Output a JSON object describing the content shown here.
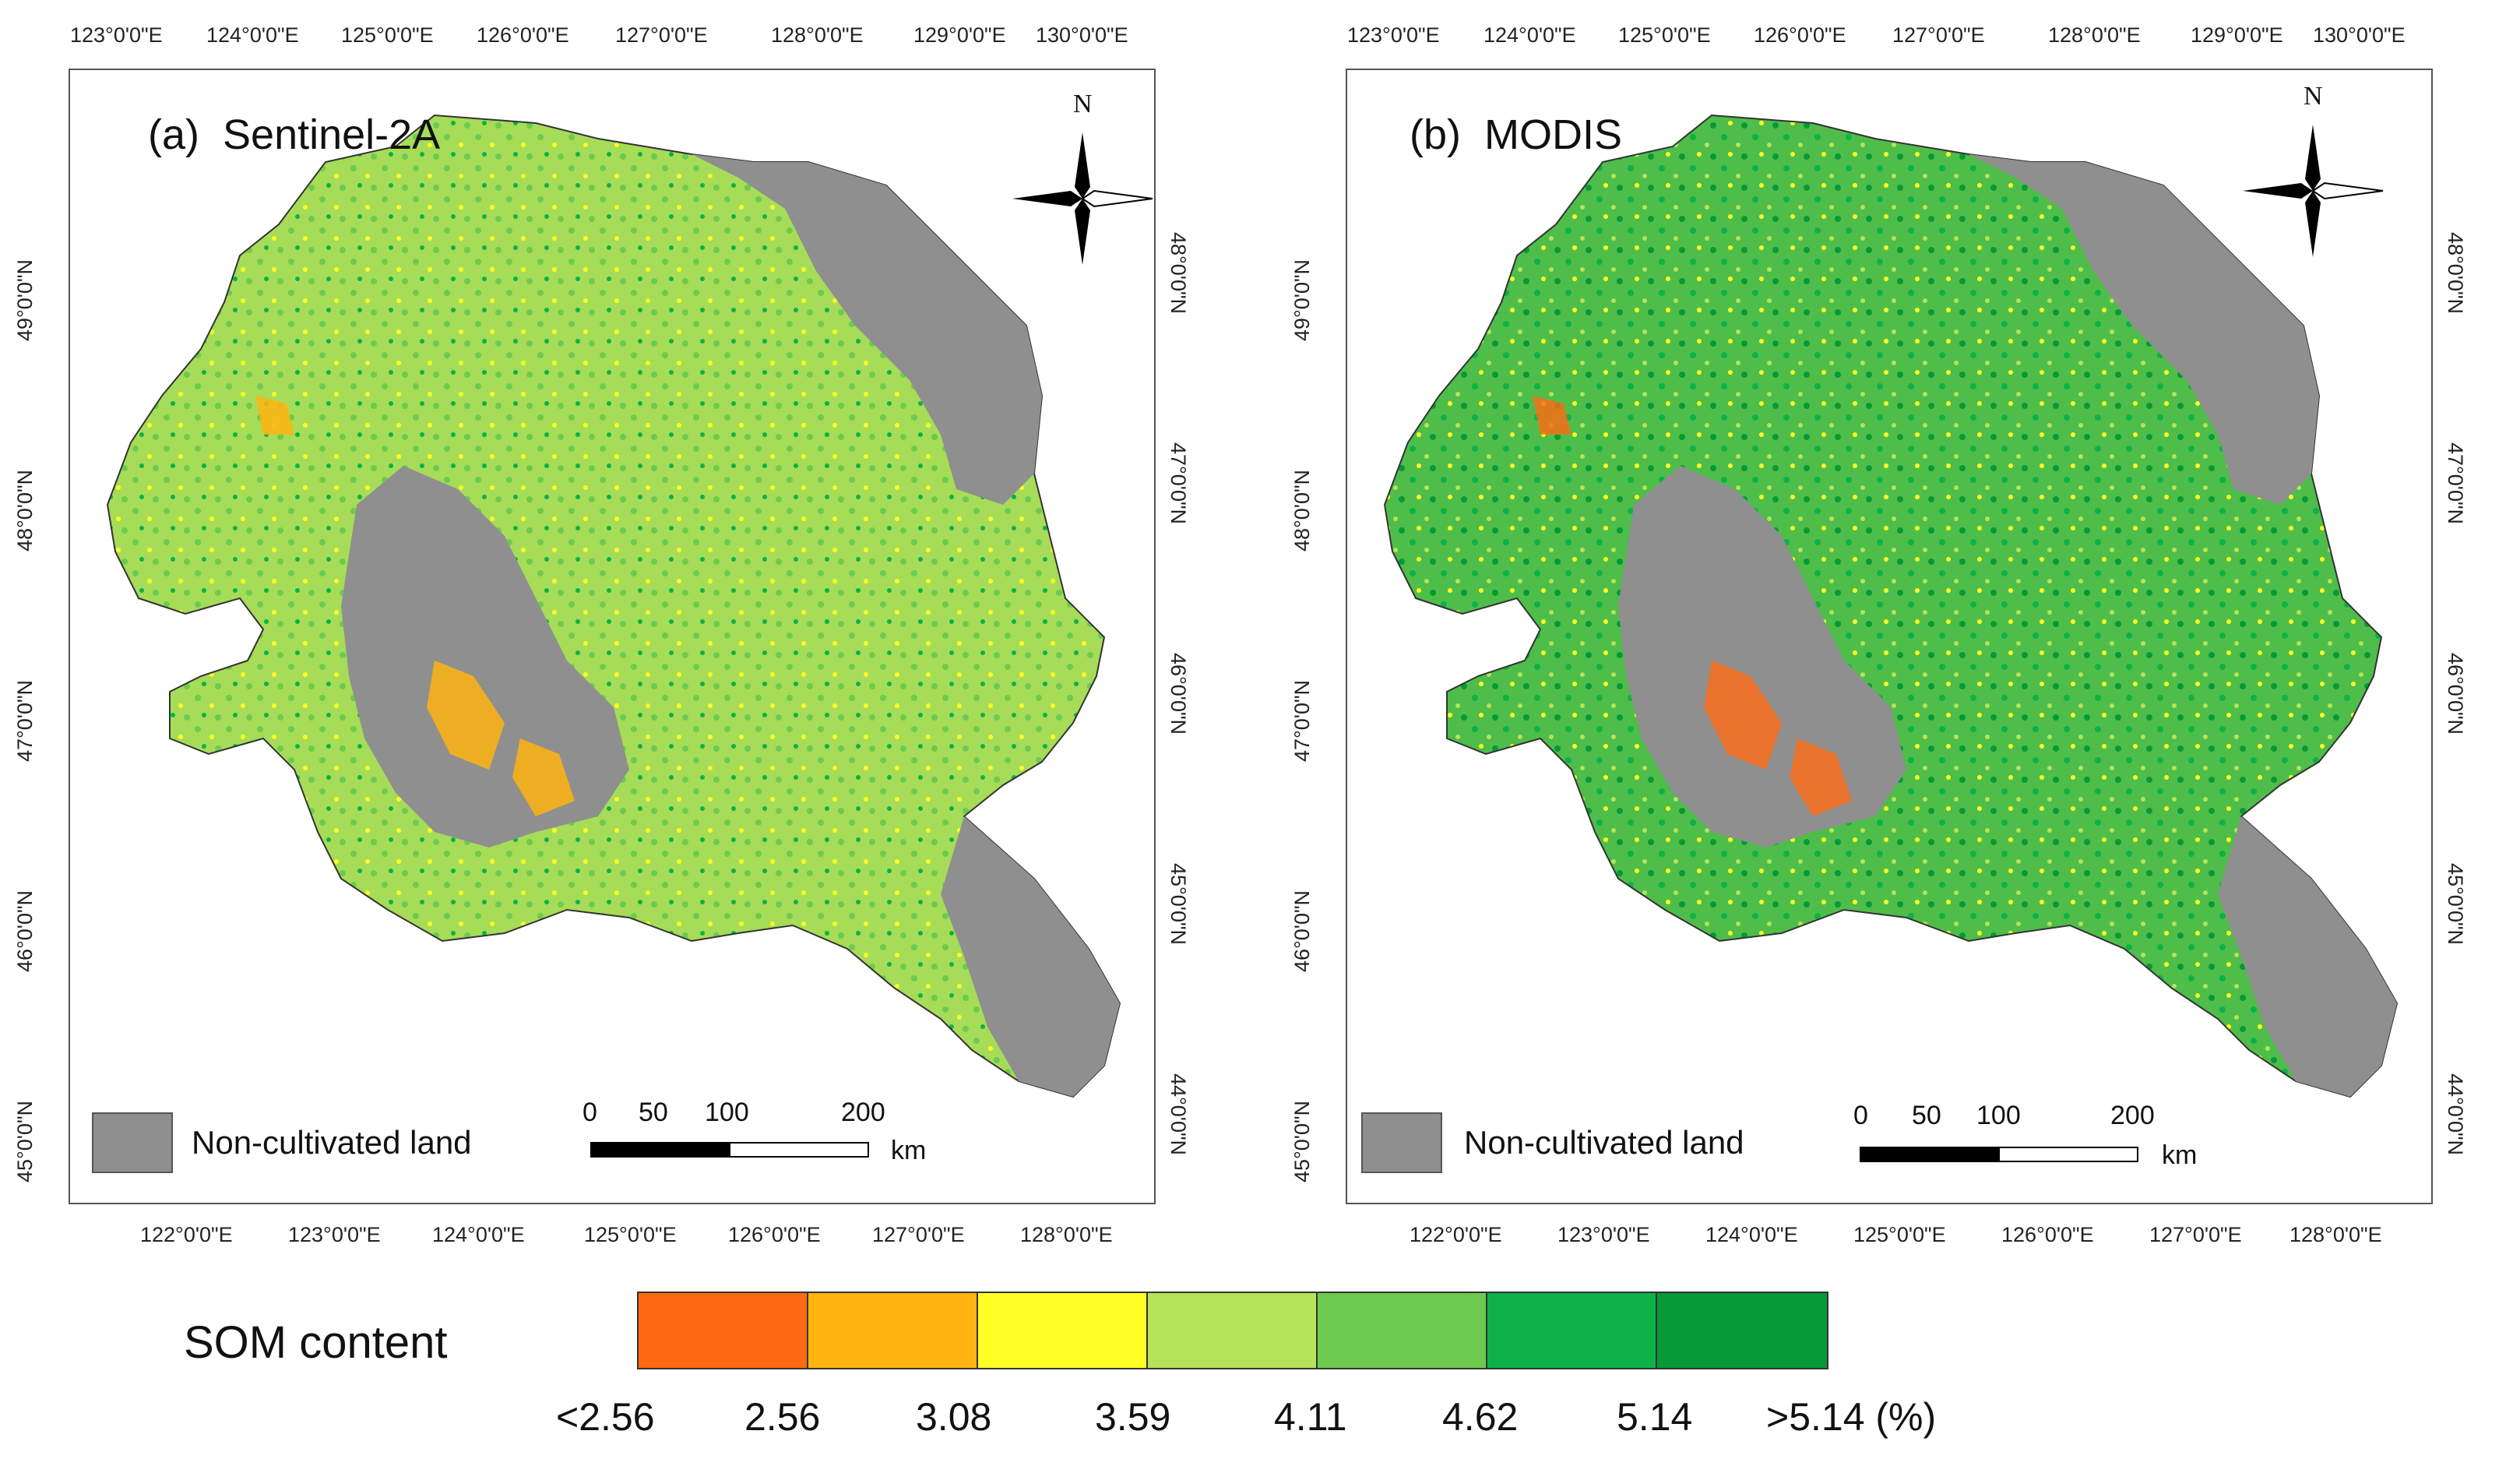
{
  "panels": [
    {
      "id": "a",
      "label": "(a)",
      "sensor": "Sentinel-2A",
      "top_ticks": [
        "123°0'0\"E",
        "124°0'0\"E",
        "125°0'0\"E",
        "126°0'0\"E",
        "127°0'0\"E",
        "128°0'0\"E",
        "129°0'0\"E",
        "130°0'0\"E"
      ],
      "bottom_ticks": [
        "122°0'0\"E",
        "123°0'0\"E",
        "124°0'0\"E",
        "125°0'0\"E",
        "126°0'0\"E",
        "127°0'0\"E",
        "128°0'0\"E"
      ],
      "left_ticks": [
        "49°0'0\"N",
        "48°0'0\"N",
        "47°0'0\"N",
        "46°0'0\"N",
        "45°0'0\"N"
      ],
      "right_ticks": [
        "48°0'0\"N",
        "47°0'0\"N",
        "46°0'0\"N",
        "45°0'0\"N",
        "44°0'0\"N"
      ]
    },
    {
      "id": "b",
      "label": "(b)",
      "sensor": "MODIS",
      "top_ticks": [
        "123°0'0\"E",
        "124°0'0\"E",
        "125°0'0\"E",
        "126°0'0\"E",
        "127°0'0\"E",
        "128°0'0\"E",
        "129°0'0\"E",
        "130°0'0\"E"
      ],
      "bottom_ticks": [
        "122°0'0\"E",
        "123°0'0\"E",
        "124°0'0\"E",
        "125°0'0\"E",
        "126°0'0\"E",
        "127°0'0\"E",
        "128°0'0\"E"
      ],
      "left_ticks": [
        "49°0'0\"N",
        "48°0'0\"N",
        "47°0'0\"N",
        "46°0'0\"N",
        "45°0'0\"N"
      ],
      "right_ticks": [
        "48°0'0\"N",
        "47°0'0\"N",
        "46°0'0\"N",
        "45°0'0\"N",
        "44°0'0\"N"
      ]
    }
  ],
  "north_arrow": {
    "letter": "N"
  },
  "non_cultivated": {
    "label": "Non-cultivated land",
    "color": "#8f8f8f"
  },
  "scale_bar": {
    "labels": [
      "0",
      "50",
      "100",
      "200"
    ],
    "unit": "km"
  },
  "legend": {
    "title": "SOM content",
    "colors": [
      "#ff6a13",
      "#ffb410",
      "#ffff24",
      "#b5e35a",
      "#6ccb4f",
      "#0cb246",
      "#069a36"
    ],
    "labels": [
      "<2.56",
      "2.56",
      "3.08",
      "3.59",
      "4.11",
      "4.62",
      "5.14",
      ">5.14 (%)"
    ]
  }
}
